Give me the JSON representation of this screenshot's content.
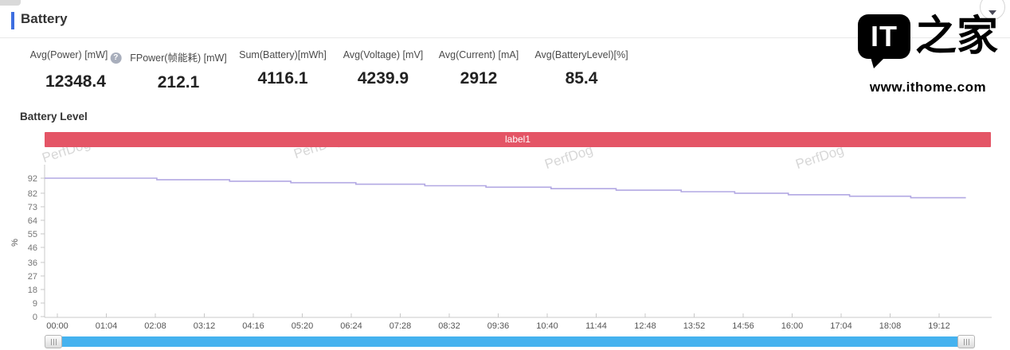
{
  "header": {
    "title": "Battery"
  },
  "icons": {
    "help": "?",
    "collapse": "chevron-down",
    "scroll_grip": "drag-grip"
  },
  "logo": {
    "bubble_text": "IT",
    "zhijia_text": "之家",
    "url": "www.ithome.com"
  },
  "stats": [
    {
      "label": "Avg(Power) [mW]",
      "value": "12348.4",
      "has_help_icon": true
    },
    {
      "label": "FPower(帧能耗) [mW]",
      "value": "212.1"
    },
    {
      "label": "Sum(Battery)[mWh]",
      "value": "4116.1"
    },
    {
      "label": "Avg(Voltage) [mV]",
      "value": "4239.9"
    },
    {
      "label": "Avg(Current) [mA]",
      "value": "2912"
    },
    {
      "label": "Avg(BatteryLevel)[%]",
      "value": "85.4"
    }
  ],
  "chart_data": {
    "type": "line",
    "title": "Battery Level",
    "xlabel": "",
    "ylabel": "%",
    "yticks": [
      0,
      9,
      18,
      27,
      36,
      46,
      55,
      64,
      73,
      82,
      92
    ],
    "ylim": [
      0,
      101
    ],
    "xtick_labels": [
      "00:00",
      "01:04",
      "02:08",
      "03:12",
      "04:16",
      "05:20",
      "06:24",
      "07:28",
      "08:32",
      "09:36",
      "10:40",
      "11:44",
      "12:48",
      "13:52",
      "14:56",
      "16:00",
      "17:04",
      "18:08",
      "19:12"
    ],
    "xtick_interval_minutes": 64,
    "xlim_minutes": [
      0,
      1221
    ],
    "grid": false,
    "legend_position": "none",
    "annotation_band": {
      "label": "label1",
      "color": "#e45566"
    },
    "watermark": "PerfDog",
    "series": [
      {
        "name": "BatteryLevel",
        "unit": "%",
        "color": "#b2a8e3",
        "interpolation": "step",
        "step_points_min_pct": [
          [
            0,
            92
          ],
          [
            130,
            91
          ],
          [
            225,
            90
          ],
          [
            305,
            89
          ],
          [
            390,
            88
          ],
          [
            480,
            87
          ],
          [
            560,
            86
          ],
          [
            645,
            85
          ],
          [
            730,
            84
          ],
          [
            815,
            83
          ],
          [
            885,
            82
          ],
          [
            955,
            81
          ],
          [
            1035,
            80
          ],
          [
            1115,
            79
          ]
        ],
        "end_minute": 1187
      }
    ]
  },
  "colors": {
    "accent_blue": "#3d6ee0",
    "band_red": "#e45566",
    "line_lavender": "#b2a8e3",
    "scrollbar_blue": "#45b2ef",
    "axis_gray": "#c8c8c8",
    "tick_label_gray": "#757575"
  }
}
